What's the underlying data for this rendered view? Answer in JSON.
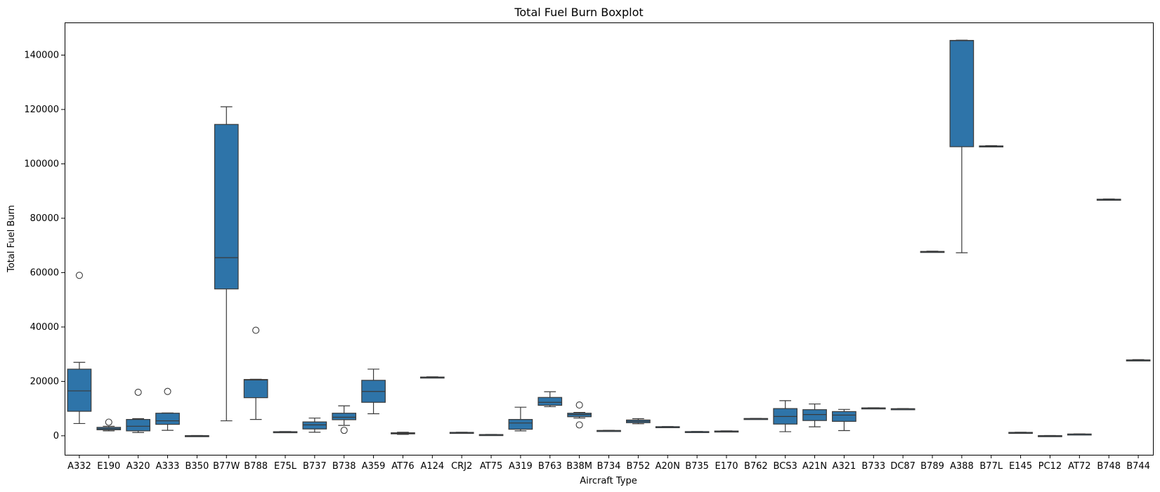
{
  "chart_data": {
    "type": "boxplot",
    "title": "Total Fuel Burn Boxplot",
    "xlabel": "Aircraft Type",
    "ylabel": "Total Fuel Burn",
    "ylim": [
      -7000,
      152000
    ],
    "yticks": [
      0,
      20000,
      40000,
      60000,
      80000,
      100000,
      120000,
      140000
    ],
    "box_color": "#2e74a9",
    "line_color": "#3a3a3a",
    "categories": [
      "A332",
      "E190",
      "A320",
      "A333",
      "B350",
      "B77W",
      "B788",
      "E75L",
      "B737",
      "B738",
      "A359",
      "AT76",
      "A124",
      "CRJ2",
      "AT75",
      "A319",
      "B763",
      "B38M",
      "B734",
      "B752",
      "A20N",
      "B735",
      "E170",
      "B762",
      "BCS3",
      "A21N",
      "A321",
      "B733",
      "DC87",
      "B789",
      "A388",
      "B77L",
      "E145",
      "PC12",
      "AT72",
      "B748",
      "B744"
    ],
    "boxes": [
      {
        "whislo": 4500,
        "q1": 9000,
        "med": 16500,
        "q3": 24500,
        "whishi": 27000,
        "fliers": [
          59000
        ]
      },
      {
        "whislo": 1800,
        "q1": 2200,
        "med": 2600,
        "q3": 3100,
        "whishi": 3500,
        "fliers": [
          5000
        ]
      },
      {
        "whislo": 1200,
        "q1": 1800,
        "med": 3500,
        "q3": 6000,
        "whishi": 6300,
        "fliers": [
          16000
        ]
      },
      {
        "whislo": 2000,
        "q1": 4200,
        "med": 5500,
        "q3": 8300,
        "whishi": 8400,
        "fliers": [
          16300
        ]
      },
      {
        "whislo": -100,
        "q1": -50,
        "med": 0,
        "q3": 50,
        "whishi": 100,
        "fliers": []
      },
      {
        "whislo": 5500,
        "q1": 54000,
        "med": 65500,
        "q3": 114500,
        "whishi": 121000,
        "fliers": []
      },
      {
        "whislo": 6000,
        "q1": 14000,
        "med": 20500,
        "q3": 20700,
        "whishi": 20800,
        "fliers": [
          38800
        ]
      },
      {
        "whislo": 1300,
        "q1": 1400,
        "med": 1450,
        "q3": 1500,
        "whishi": 1550,
        "fliers": []
      },
      {
        "whislo": 1300,
        "q1": 2500,
        "med": 4000,
        "q3": 5100,
        "whishi": 6500,
        "fliers": []
      },
      {
        "whislo": 3800,
        "q1": 5900,
        "med": 6800,
        "q3": 8300,
        "whishi": 11000,
        "fliers": [
          2000
        ]
      },
      {
        "whislo": 8100,
        "q1": 12300,
        "med": 16300,
        "q3": 20400,
        "whishi": 24500,
        "fliers": []
      },
      {
        "whislo": 500,
        "q1": 700,
        "med": 900,
        "q3": 1100,
        "whishi": 1300,
        "fliers": []
      },
      {
        "whislo": 21300,
        "q1": 21400,
        "med": 21500,
        "q3": 21600,
        "whishi": 21700,
        "fliers": []
      },
      {
        "whislo": 1100,
        "q1": 1150,
        "med": 1200,
        "q3": 1250,
        "whishi": 1300,
        "fliers": []
      },
      {
        "whislo": 300,
        "q1": 350,
        "med": 400,
        "q3": 450,
        "whishi": 500,
        "fliers": []
      },
      {
        "whislo": 1800,
        "q1": 2400,
        "med": 4700,
        "q3": 6000,
        "whishi": 10500,
        "fliers": []
      },
      {
        "whislo": 10700,
        "q1": 11200,
        "med": 12300,
        "q3": 14100,
        "whishi": 16200,
        "fliers": []
      },
      {
        "whislo": 6500,
        "q1": 7000,
        "med": 7800,
        "q3": 8300,
        "whishi": 8600,
        "fliers": [
          11300,
          4000
        ]
      },
      {
        "whislo": 1800,
        "q1": 1850,
        "med": 1900,
        "q3": 1950,
        "whishi": 2000,
        "fliers": []
      },
      {
        "whislo": 4400,
        "q1": 4800,
        "med": 5300,
        "q3": 5800,
        "whishi": 6300,
        "fliers": []
      },
      {
        "whislo": 3200,
        "q1": 3250,
        "med": 3300,
        "q3": 3350,
        "whishi": 3400,
        "fliers": []
      },
      {
        "whislo": 1400,
        "q1": 1450,
        "med": 1500,
        "q3": 1550,
        "whishi": 1600,
        "fliers": []
      },
      {
        "whislo": 1600,
        "q1": 1650,
        "med": 1700,
        "q3": 1750,
        "whishi": 1800,
        "fliers": []
      },
      {
        "whislo": 6200,
        "q1": 6250,
        "med": 6300,
        "q3": 6350,
        "whishi": 6400,
        "fliers": []
      },
      {
        "whislo": 1500,
        "q1": 4300,
        "med": 7100,
        "q3": 10000,
        "whishi": 12900,
        "fliers": []
      },
      {
        "whislo": 3300,
        "q1": 5600,
        "med": 7800,
        "q3": 9600,
        "whishi": 11700,
        "fliers": []
      },
      {
        "whislo": 1900,
        "q1": 5300,
        "med": 7600,
        "q3": 8900,
        "whishi": 9700,
        "fliers": []
      },
      {
        "whislo": 10100,
        "q1": 10150,
        "med": 10200,
        "q3": 10250,
        "whishi": 10300,
        "fliers": []
      },
      {
        "whislo": 9800,
        "q1": 9850,
        "med": 9900,
        "q3": 9950,
        "whishi": 10000,
        "fliers": []
      },
      {
        "whislo": 67500,
        "q1": 67600,
        "med": 67700,
        "q3": 67800,
        "whishi": 67900,
        "fliers": []
      },
      {
        "whislo": 67300,
        "q1": 106300,
        "med": 145300,
        "q3": 145400,
        "whishi": 145500,
        "fliers": []
      },
      {
        "whislo": 106300,
        "q1": 106400,
        "med": 106500,
        "q3": 106600,
        "whishi": 106700,
        "fliers": []
      },
      {
        "whislo": 1100,
        "q1": 1150,
        "med": 1200,
        "q3": 1250,
        "whishi": 1300,
        "fliers": []
      },
      {
        "whislo": -100,
        "q1": -50,
        "med": 0,
        "q3": 50,
        "whishi": 100,
        "fliers": []
      },
      {
        "whislo": 500,
        "q1": 550,
        "med": 600,
        "q3": 650,
        "whishi": 700,
        "fliers": []
      },
      {
        "whislo": 86700,
        "q1": 86800,
        "med": 86900,
        "q3": 87000,
        "whishi": 87100,
        "fliers": []
      },
      {
        "whislo": 27600,
        "q1": 27700,
        "med": 27800,
        "q3": 27900,
        "whishi": 28000,
        "fliers": []
      }
    ]
  }
}
